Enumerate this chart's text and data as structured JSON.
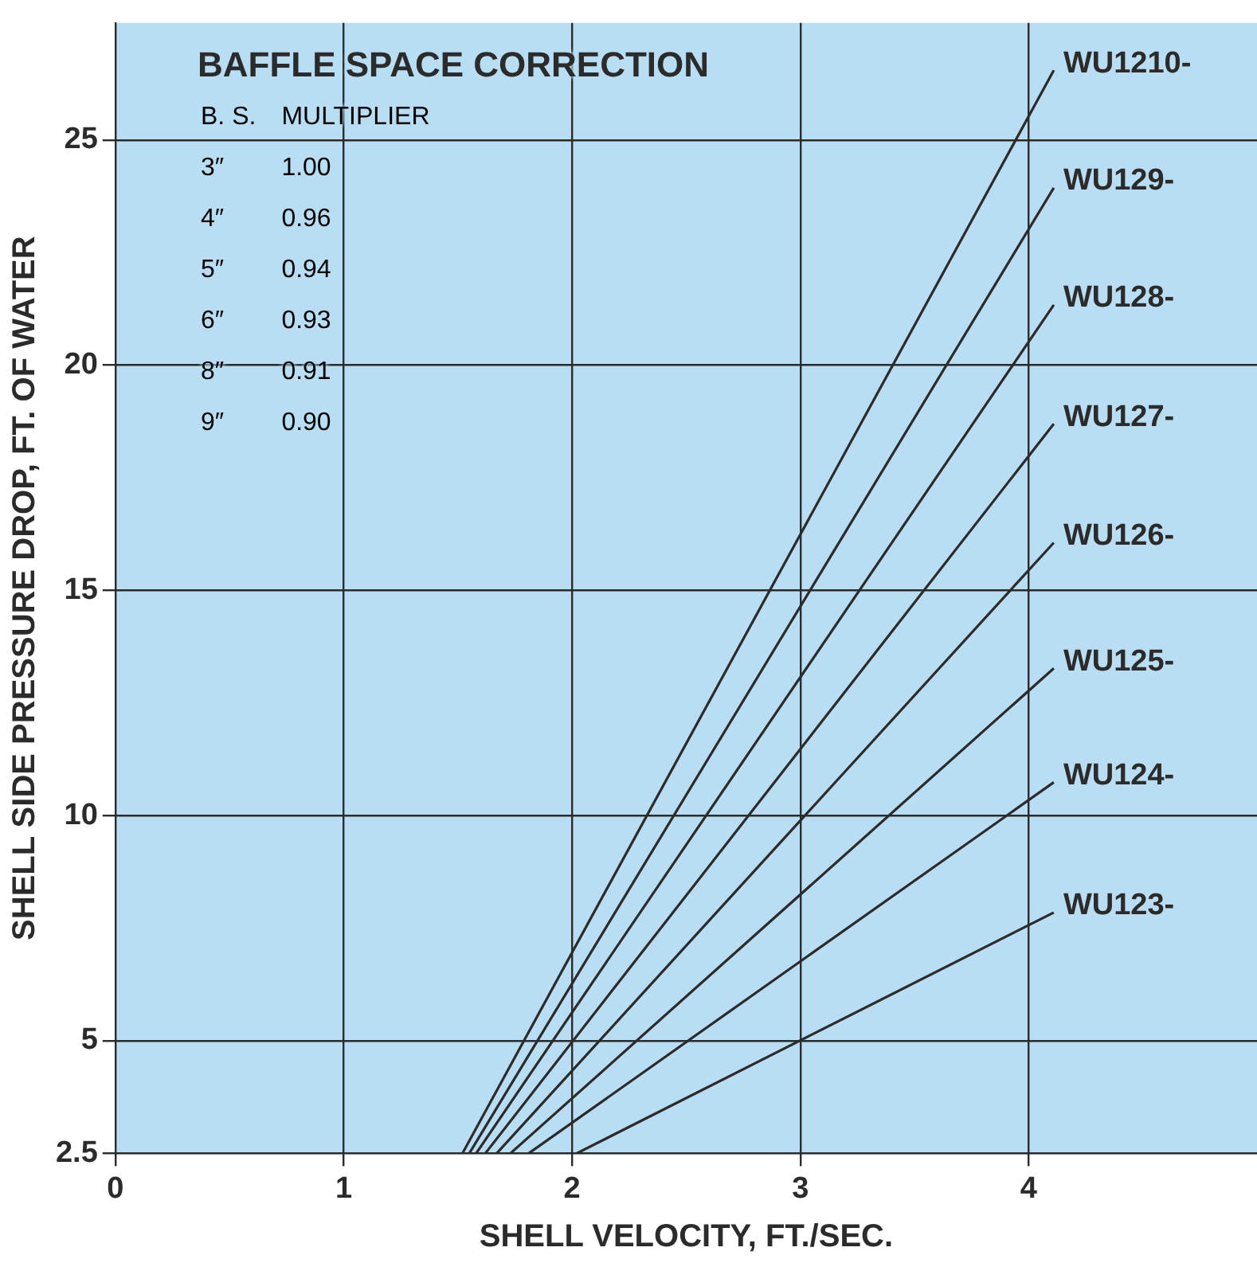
{
  "chart_data": {
    "type": "line",
    "xlabel": "SHELL VELOCITY, FT./SEC.",
    "ylabel": "SHELL SIDE PRESSURE DROP, FT. OF WATER",
    "xlim": [
      0,
      5
    ],
    "xticks": [
      0,
      1,
      2,
      3,
      4
    ],
    "ylim": [
      2.5,
      27.6
    ],
    "yticks": [
      2.5,
      5,
      10,
      15,
      20,
      25
    ],
    "grid": true,
    "legend": false,
    "marker": "none",
    "line_style": "solid",
    "series": [
      {
        "name": "WU1210-",
        "color": "#2b2b2b",
        "x": [
          1.52,
          4.11
        ],
        "values": [
          2.5,
          26.55
        ]
      },
      {
        "name": "WU129-",
        "color": "#2b2b2b",
        "x": [
          1.55,
          4.11
        ],
        "values": [
          2.5,
          23.94
        ]
      },
      {
        "name": "WU128-",
        "color": "#2b2b2b",
        "x": [
          1.58,
          4.11
        ],
        "values": [
          2.5,
          21.34
        ]
      },
      {
        "name": "WU127-",
        "color": "#2b2b2b",
        "x": [
          1.62,
          4.11
        ],
        "values": [
          2.5,
          18.7
        ]
      },
      {
        "name": "WU126-",
        "color": "#2b2b2b",
        "x": [
          1.67,
          4.11
        ],
        "values": [
          2.5,
          16.06
        ]
      },
      {
        "name": "WU125-",
        "color": "#2b2b2b",
        "x": [
          1.73,
          4.11
        ],
        "values": [
          2.5,
          13.27
        ]
      },
      {
        "name": "WU124-",
        "color": "#2b2b2b",
        "x": [
          1.81,
          4.11
        ],
        "values": [
          2.5,
          10.74
        ]
      },
      {
        "name": "WU123-",
        "color": "#2b2b2b",
        "x": [
          2.02,
          4.11
        ],
        "values": [
          2.5,
          7.85
        ]
      }
    ],
    "annotations": [
      "BAFFLE SPACE CORRECTION",
      "B. S.",
      "MULTIPLIER",
      "3″",
      "1.00",
      "4″",
      "0.96",
      "5″",
      "0.94",
      "6″",
      "0.93",
      "8″",
      "0.91",
      "9″",
      "0.90"
    ]
  }
}
